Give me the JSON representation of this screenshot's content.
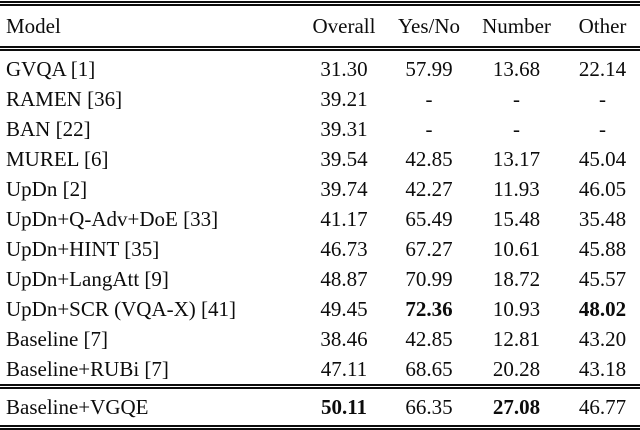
{
  "table": {
    "columns": {
      "model": "Model",
      "overall": "Overall",
      "yesno": "Yes/No",
      "number": "Number",
      "other": "Other"
    },
    "rows": [
      {
        "model": "GVQA [1]",
        "overall": "31.30",
        "yesno": "57.99",
        "number": "13.68",
        "other": "22.14"
      },
      {
        "model": "RAMEN [36]",
        "overall": "39.21",
        "yesno": "-",
        "number": "-",
        "other": "-"
      },
      {
        "model": "BAN [22]",
        "overall": "39.31",
        "yesno": "-",
        "number": "-",
        "other": "-"
      },
      {
        "model": "MUREL [6]",
        "overall": "39.54",
        "yesno": "42.85",
        "number": "13.17",
        "other": "45.04"
      },
      {
        "model": "UpDn [2]",
        "overall": "39.74",
        "yesno": "42.27",
        "number": "11.93",
        "other": "46.05"
      },
      {
        "model": "UpDn+Q-Adv+DoE [33]",
        "overall": "41.17",
        "yesno": "65.49",
        "number": "15.48",
        "other": "35.48"
      },
      {
        "model": "UpDn+HINT [35]",
        "overall": "46.73",
        "yesno": "67.27",
        "number": "10.61",
        "other": "45.88"
      },
      {
        "model": "UpDn+LangAtt [9]",
        "overall": "48.87",
        "yesno": "70.99",
        "number": "18.72",
        "other": "45.57"
      },
      {
        "model": "UpDn+SCR (VQA-X) [41]",
        "overall": "49.45",
        "yesno": "72.36",
        "number": "10.93",
        "other": "48.02"
      },
      {
        "model": "Baseline [7]",
        "overall": "38.46",
        "yesno": "42.85",
        "number": "12.81",
        "other": "43.20"
      },
      {
        "model": "Baseline+RUBi [7]",
        "overall": "47.11",
        "yesno": "68.65",
        "number": "20.28",
        "other": "43.18"
      }
    ],
    "footer_row": {
      "model": "Baseline+VGQE",
      "overall": "50.11",
      "yesno": "66.35",
      "number": "27.08",
      "other": "46.77"
    }
  }
}
